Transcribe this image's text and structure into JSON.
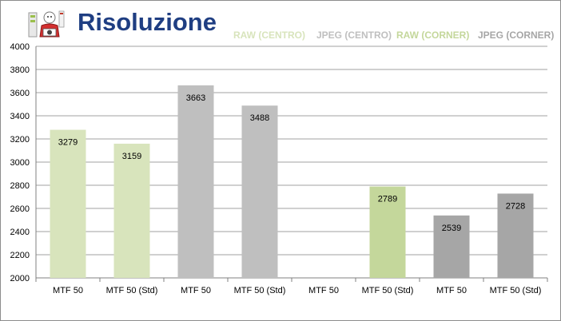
{
  "title": "Risoluzione",
  "colors": {
    "raw_centro": "#d8e4bc",
    "jpeg_centro": "#bfbfbf",
    "raw_corner": "#c4d79b",
    "jpeg_corner": "#a6a6a6",
    "title": "#1f3e82",
    "gridline": "#a0a0a0"
  },
  "legend": {
    "raw_centro": "RAW (CENTRO)",
    "jpeg_centro": "JPEG (CENTRO)",
    "raw_corner": "RAW (CORNER)",
    "jpeg_corner": "JPEG (CORNER)"
  },
  "chart_data": {
    "type": "bar",
    "title": "Risoluzione",
    "categories": [
      "MTF 50",
      "MTF 50 (Std)",
      "MTF 50",
      "MTF 50 (Std)",
      "MTF 50",
      "MTF 50 (Std)",
      "MTF 50",
      "MTF 50 (Std)"
    ],
    "series": [
      {
        "name": "RAW (CENTRO)",
        "color": "#d8e4bc",
        "values": [
          3279,
          3159,
          null,
          null,
          null,
          null,
          null,
          null
        ]
      },
      {
        "name": "JPEG (CENTRO)",
        "color": "#bfbfbf",
        "values": [
          null,
          null,
          3663,
          3488,
          null,
          null,
          null,
          null
        ]
      },
      {
        "name": "RAW (CORNER)",
        "color": "#c4d79b",
        "values": [
          null,
          null,
          null,
          null,
          null,
          2789,
          null,
          null
        ]
      },
      {
        "name": "JPEG (CORNER)",
        "color": "#a6a6a6",
        "values": [
          null,
          null,
          null,
          null,
          null,
          null,
          2539,
          2728
        ]
      }
    ],
    "ylim": [
      2000,
      4000
    ],
    "yticks": [
      2000,
      2200,
      2400,
      2600,
      2800,
      3000,
      3200,
      3400,
      3600,
      3800,
      4000
    ],
    "xlabel": "",
    "ylabel": "",
    "grid": true,
    "legend_position": "top-right"
  }
}
